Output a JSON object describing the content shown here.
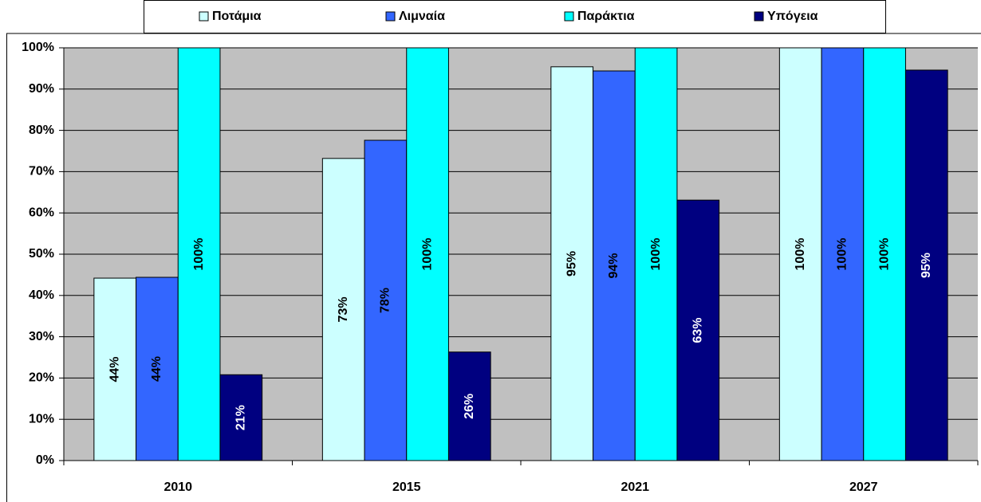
{
  "chart_data": {
    "type": "bar",
    "categories": [
      "2010",
      "2015",
      "2021",
      "2027"
    ],
    "series": [
      {
        "name": "Ποτάμια",
        "color": "#ccffff",
        "values": [
          44.2,
          73.2,
          95.4,
          100
        ],
        "value_labels": [
          "44%",
          "73%",
          "95%",
          "100%"
        ]
      },
      {
        "name": "Λιμναία",
        "color": "#3366ff",
        "values": [
          44.4,
          77.6,
          94.4,
          100
        ],
        "value_labels": [
          "44%",
          "78%",
          "94%",
          "100%"
        ]
      },
      {
        "name": "Παράκτια",
        "color": "#00ffff",
        "values": [
          100,
          100,
          100,
          100
        ],
        "value_labels": [
          "100%",
          "100%",
          "100%",
          "100%"
        ]
      },
      {
        "name": "Υπόγεια",
        "color": "#000080",
        "values": [
          20.8,
          26.3,
          63.1,
          94.6
        ],
        "value_labels": [
          "21%",
          "26%",
          "63%",
          "95%"
        ]
      }
    ],
    "ylim": [
      0,
      100
    ],
    "yticks": [
      {
        "value": 0,
        "label": "0%"
      },
      {
        "value": 10,
        "label": "10%"
      },
      {
        "value": 20,
        "label": "20%"
      },
      {
        "value": 30,
        "label": "30%"
      },
      {
        "value": 40,
        "label": "40%"
      },
      {
        "value": 50,
        "label": "50%"
      },
      {
        "value": 60,
        "label": "60%"
      },
      {
        "value": 70,
        "label": "70%"
      },
      {
        "value": 80,
        "label": "80%"
      },
      {
        "value": 90,
        "label": "90%"
      },
      {
        "value": 100,
        "label": "100%"
      }
    ],
    "grid": true,
    "legend": "top"
  }
}
